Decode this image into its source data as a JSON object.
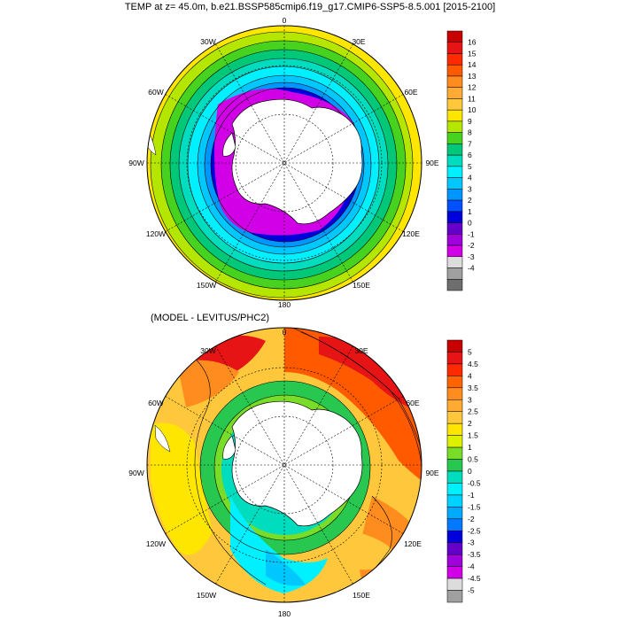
{
  "title": "TEMP at z=  45.0m, b.e21.BSSP585cmip6.f19_g17.CMIP6-SSP5-8.5.001 [2015-2100]",
  "subtitle": "(MODEL - LEVITUS/PHC2)",
  "longitude_labels": [
    "0",
    "30E",
    "60E",
    "90E",
    "120E",
    "150E",
    "180",
    "150W",
    "120W",
    "90W",
    "60W",
    "30W"
  ],
  "maps": [
    {
      "name": "temperature",
      "colorbar": {
        "labels": [
          "16",
          "15",
          "14",
          "13",
          "12",
          "11",
          "10",
          "9",
          "8",
          "7",
          "6",
          "5",
          "4",
          "3",
          "2",
          "1",
          "0",
          "-1",
          "-2",
          "-3",
          "-4"
        ],
        "colors": [
          "#c80000",
          "#e61414",
          "#ff2a00",
          "#ff5a00",
          "#ff8c1e",
          "#ffaa32",
          "#ffc83c",
          "#ffe600",
          "#b4e600",
          "#46d21e",
          "#00c878",
          "#00dcbe",
          "#00f0ff",
          "#00c8ff",
          "#0096ff",
          "#0050ff",
          "#0000dc",
          "#6400c8",
          "#a000dc",
          "#d200e6",
          "#dcdcdc",
          "#a0a0a0",
          "#6e6e6e"
        ]
      }
    },
    {
      "name": "anomaly",
      "colorbar": {
        "labels": [
          "5",
          "4.5",
          "4",
          "3.5",
          "3",
          "2.5",
          "2",
          "1.5",
          "1",
          "0.5",
          "0",
          "-0.5",
          "-1",
          "-1.5",
          "-2",
          "-2.5",
          "-3",
          "-3.5",
          "-4",
          "-4.5",
          "-5"
        ],
        "colors": [
          "#c80000",
          "#e61414",
          "#ff2a00",
          "#ff6400",
          "#ff8c1e",
          "#ffaa32",
          "#ffc83c",
          "#ffe600",
          "#dcf000",
          "#78dc28",
          "#28c850",
          "#00dcbe",
          "#00f0ff",
          "#00d2ff",
          "#00aaff",
          "#0078ff",
          "#0000dc",
          "#6400c8",
          "#a000dc",
          "#d200e6",
          "#dcdcdc",
          "#a0a0a0"
        ]
      }
    }
  ]
}
